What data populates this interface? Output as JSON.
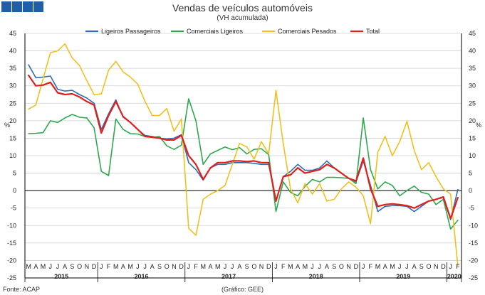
{
  "header": {
    "title": "Vendas de veículos automóveis",
    "subtitle": "(VH acumulada)"
  },
  "footer": {
    "source": "Fonte: ACAP",
    "credit": "(Gráfico: GEE)"
  },
  "colors": {
    "logo": "#1f5fa8",
    "grid": "#d0d0d0",
    "axis": "#000000",
    "ligeiros_passageiros": "#2e6db4",
    "comerciais_ligeiros": "#2ea84f",
    "comerciais_pesados": "#f0c020",
    "total": "#e0201c"
  },
  "chart_data": {
    "type": "line",
    "title": "Vendas de veículos automóveis",
    "subtitle": "(VH acumulada)",
    "ylabel_left": "%",
    "ylabel_right": "%",
    "ylim": [
      -25,
      45
    ],
    "yticks": [
      -25,
      -20,
      -15,
      -10,
      -5,
      0,
      5,
      10,
      15,
      20,
      25,
      30,
      35,
      40,
      45
    ],
    "grid": true,
    "legend_position": "top",
    "month_labels": [
      "M",
      "A",
      "M",
      "J",
      "J",
      "A",
      "S",
      "O",
      "N",
      "D",
      "J",
      "F",
      "M",
      "A",
      "M",
      "J",
      "J",
      "A",
      "S",
      "O",
      "N",
      "D",
      "J",
      "F",
      "M",
      "A",
      "M",
      "J",
      "J",
      "A",
      "S",
      "O",
      "N",
      "D",
      "J",
      "F",
      "M",
      "A",
      "M",
      "J",
      "J",
      "A",
      "S",
      "O",
      "N",
      "D",
      "J",
      "F",
      "M",
      "A",
      "M",
      "J",
      "J",
      "A",
      "S",
      "O",
      "N",
      "D",
      "J",
      "F"
    ],
    "years": [
      {
        "label": "2015",
        "start": 0,
        "end": 9
      },
      {
        "label": "2016",
        "start": 10,
        "end": 21
      },
      {
        "label": "2017",
        "start": 22,
        "end": 33
      },
      {
        "label": "2018",
        "start": 34,
        "end": 45
      },
      {
        "label": "2019",
        "start": 46,
        "end": 57
      },
      {
        "label": "2020",
        "start": 58,
        "end": 59
      }
    ],
    "series": [
      {
        "name": "Ligeiros Passageiros",
        "color_key": "ligeiros_passageiros",
        "values": [
          36,
          32.3,
          32.5,
          32.8,
          29,
          28.5,
          28.7,
          27.5,
          26.5,
          25,
          17.5,
          22,
          26,
          21,
          19.5,
          17.5,
          15.8,
          15.5,
          15,
          14.8,
          15,
          16,
          8,
          6,
          3,
          6.5,
          7.5,
          7.5,
          8,
          8,
          8,
          7.8,
          7.5,
          7.5,
          -3,
          4,
          5.5,
          7.5,
          5.8,
          5.8,
          6.5,
          8.5,
          6.5,
          5,
          3.5,
          2.5,
          8.5,
          1.5,
          -6,
          -4.5,
          -4.3,
          -4.3,
          -4.5,
          -6,
          -4.5,
          -3,
          -2.5,
          -2,
          -8.3,
          0.3
        ]
      },
      {
        "name": "Comerciais Ligeiros",
        "color_key": "comerciais_ligeiros",
        "values": [
          16.3,
          16.4,
          16.6,
          20,
          19.5,
          20.8,
          21.8,
          21,
          20.8,
          18,
          5.5,
          4.3,
          20.5,
          17.5,
          16.3,
          16.2,
          15.5,
          15.3,
          15.5,
          12.8,
          11.8,
          13,
          26.3,
          20,
          7.5,
          10.5,
          11.5,
          12.5,
          11.7,
          12.3,
          10.5,
          11.8,
          12,
          10.3,
          -6,
          2.5,
          -0.5,
          -1.5,
          1.2,
          3.2,
          2.5,
          3.8,
          3.8,
          3.7,
          3.5,
          2,
          20.8,
          6,
          0.5,
          2.5,
          1.5,
          -1.5,
          0,
          1.3,
          -0.5,
          -1,
          -4,
          -2.5,
          -11,
          -8.5
        ]
      },
      {
        "name": "Comerciais Pesados",
        "color_key": "comerciais_pesados",
        "values": [
          23.3,
          24.5,
          32,
          39.5,
          40,
          42,
          38,
          35.8,
          31.5,
          27.5,
          27.7,
          34.5,
          37,
          34,
          32.5,
          30.5,
          25.5,
          21.5,
          21.5,
          23.5,
          17,
          20.5,
          -10.8,
          -12.8,
          -2.5,
          -1,
          0,
          1.5,
          7.5,
          13.5,
          12.5,
          9,
          14,
          10.5,
          28.7,
          13.5,
          0.5,
          -3.5,
          2,
          -1,
          2,
          -3,
          -2.5,
          0.5,
          2.5,
          1,
          -1.5,
          -9.5,
          11,
          15.5,
          10,
          14,
          19.8,
          11.5,
          6,
          8,
          4,
          0.5,
          -1,
          -21.5
        ]
      },
      {
        "name": "Total",
        "color_key": "total",
        "values": [
          33,
          30,
          30.2,
          31,
          28,
          27.5,
          27.7,
          26.8,
          25.5,
          24.5,
          16.5,
          21.5,
          25.5,
          21.2,
          19.5,
          17.5,
          15.5,
          15.3,
          15,
          14.5,
          14.5,
          15.8,
          10,
          7.5,
          3.2,
          6.5,
          8,
          8,
          8.5,
          8.5,
          8.3,
          8.5,
          8,
          8,
          -3,
          4,
          4.5,
          6.5,
          5,
          5.5,
          6,
          7.5,
          6.5,
          5,
          3.5,
          2.8,
          9.3,
          0.5,
          -4.5,
          -4,
          -3.8,
          -4,
          -4.3,
          -5,
          -4,
          -3,
          -2.5,
          -1.8,
          -8,
          -2
        ]
      }
    ]
  }
}
